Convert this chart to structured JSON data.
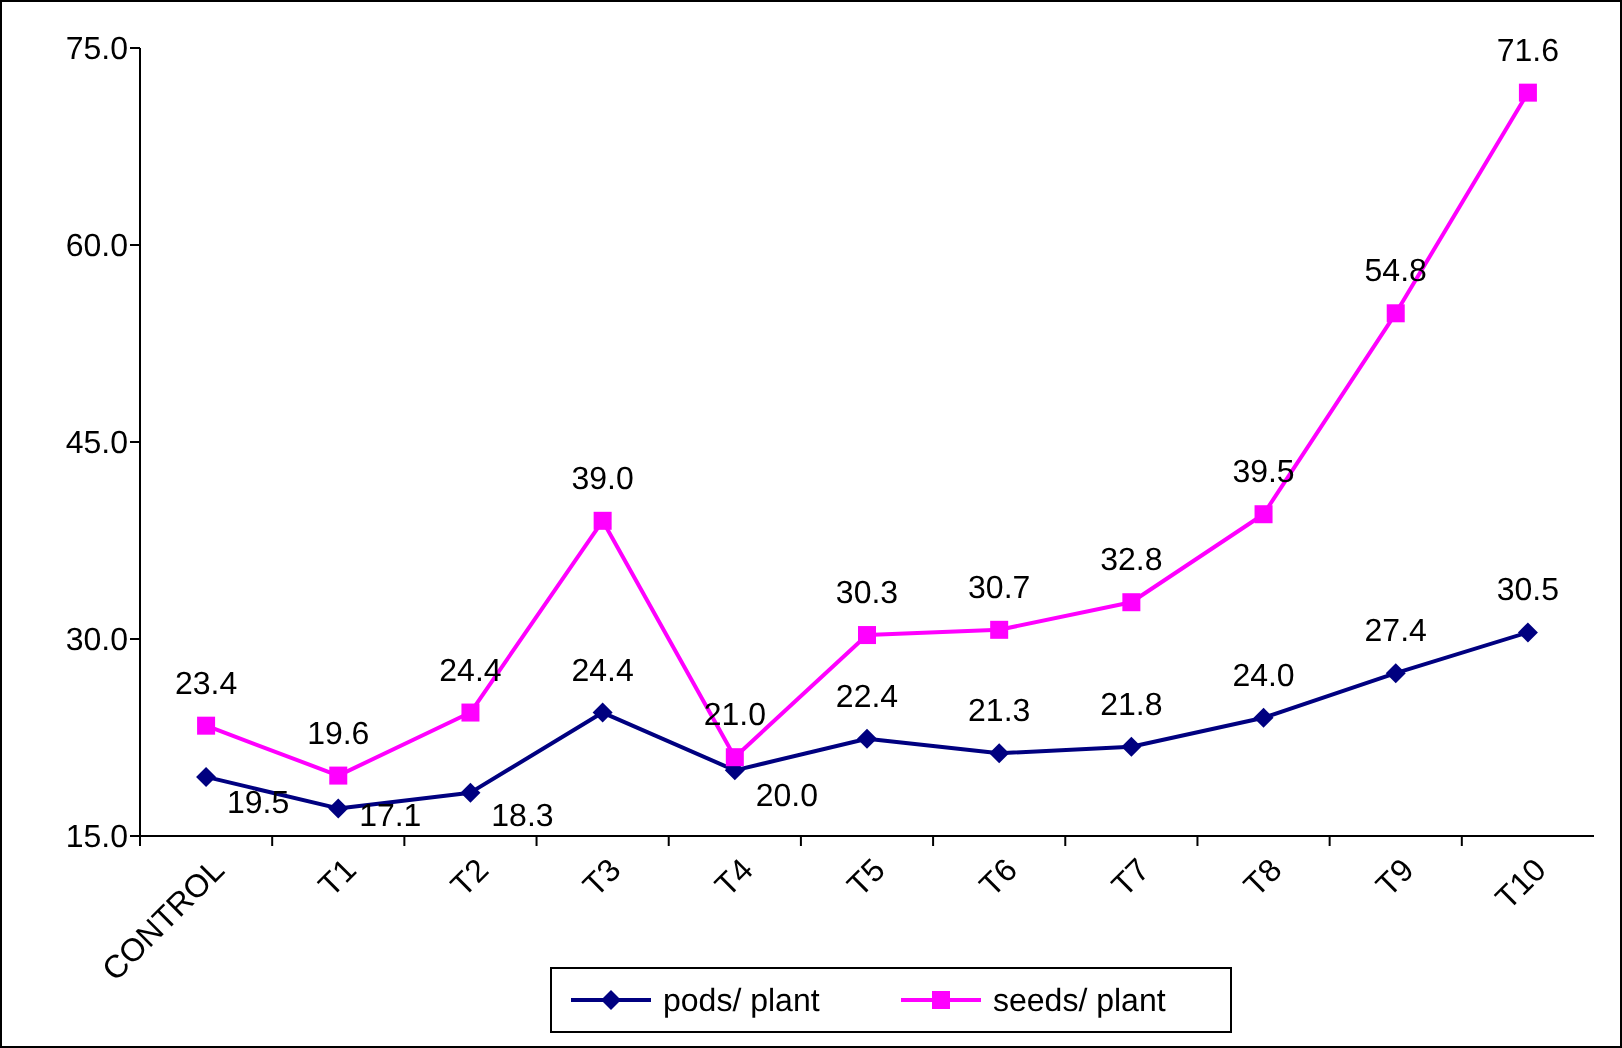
{
  "chart_data": {
    "type": "line",
    "categories": [
      "CONTROL",
      "T1",
      "T2",
      "T3",
      "T4",
      "T5",
      "T6",
      "T7",
      "T8",
      "T9",
      "T10"
    ],
    "series": [
      {
        "name": "pods/ plant",
        "color": "#000080",
        "marker": "diamond",
        "values": [
          19.5,
          17.1,
          18.3,
          24.4,
          20.0,
          22.4,
          21.3,
          21.8,
          24.0,
          27.4,
          30.5
        ],
        "value_labels": [
          "19.5",
          "17.1",
          "18.3",
          "24.4",
          "20.0",
          "22.4",
          "21.3",
          "21.8",
          "24.0",
          "27.4",
          "30.5"
        ]
      },
      {
        "name": "seeds/ plant",
        "color": "#ff00ff",
        "marker": "square",
        "values": [
          23.4,
          19.6,
          24.4,
          39.0,
          21.0,
          30.3,
          30.7,
          32.8,
          39.5,
          54.8,
          71.6
        ],
        "value_labels": [
          "23.4",
          "19.6",
          "24.4",
          "39.0",
          "21.0",
          "30.3",
          "30.7",
          "32.8",
          "39.5",
          "54.8",
          "71.6"
        ]
      }
    ],
    "ylim": [
      15,
      75
    ],
    "yticks": [
      {
        "value": 15,
        "label": "15.0"
      },
      {
        "value": 30,
        "label": "30.0"
      },
      {
        "value": 45,
        "label": "45.0"
      },
      {
        "value": 60,
        "label": "60.0"
      },
      {
        "value": 75,
        "label": "75.0"
      }
    ],
    "legend": "bottom",
    "grid": false
  }
}
